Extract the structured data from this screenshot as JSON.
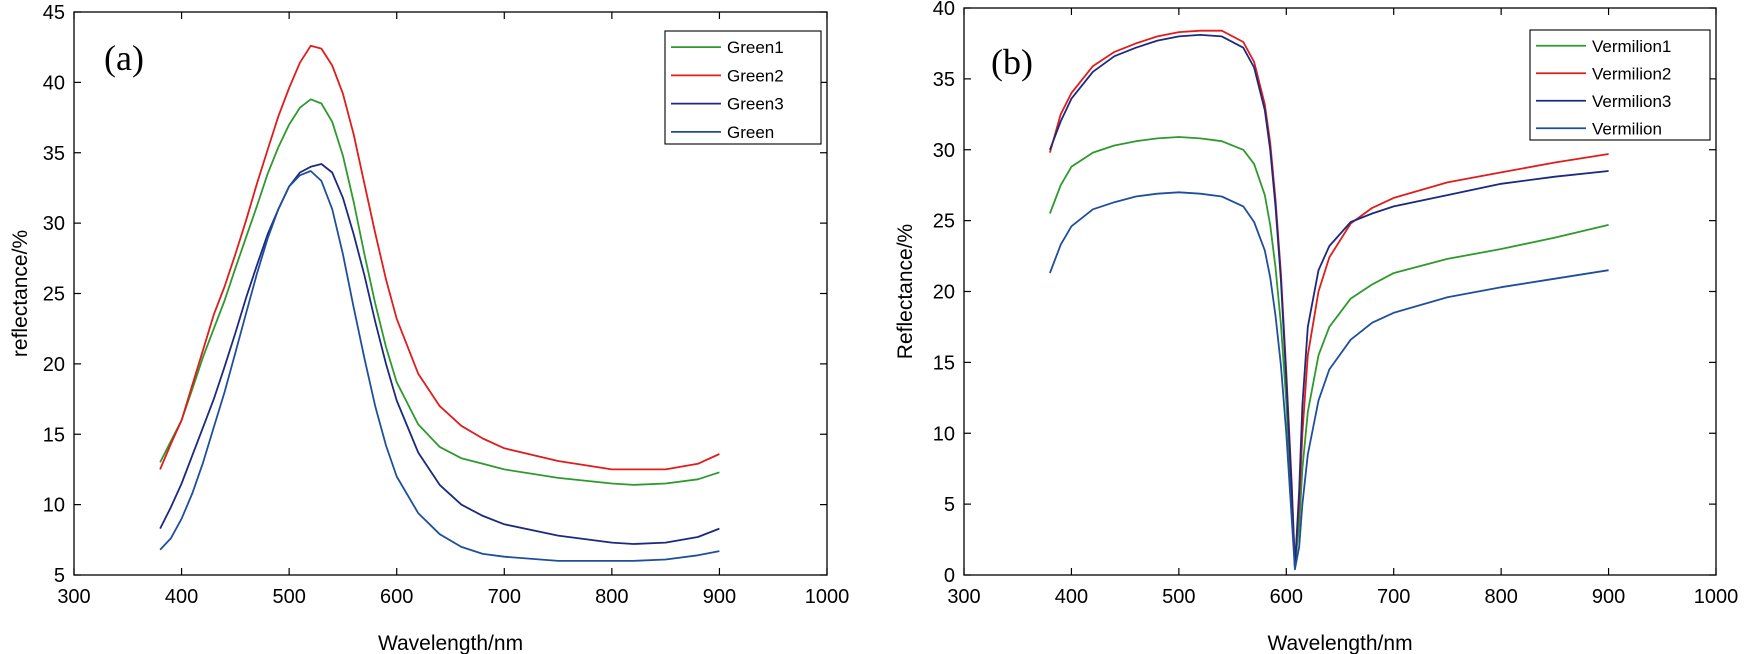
{
  "chart_data": [
    {
      "type": "line",
      "panel_label": "(a)",
      "xlabel": "Wavelength/nm",
      "ylabel": "reflectance/%",
      "xlim": [
        300,
        1000
      ],
      "ylim": [
        5,
        45
      ],
      "xticks": [
        300,
        400,
        500,
        600,
        700,
        800,
        900,
        1000
      ],
      "yticks": [
        5,
        10,
        15,
        20,
        25,
        30,
        35,
        40,
        45
      ],
      "legend_position": "top-right",
      "series": [
        {
          "name": "Green1",
          "color": "#2e9a2e",
          "x": [
            380,
            390,
            400,
            410,
            420,
            430,
            440,
            450,
            460,
            470,
            480,
            490,
            500,
            510,
            520,
            530,
            540,
            550,
            560,
            570,
            580,
            590,
            600,
            620,
            640,
            660,
            680,
            700,
            750,
            800,
            820,
            850,
            880,
            900
          ],
          "y": [
            13.0,
            14.5,
            16.0,
            18.2,
            20.5,
            22.5,
            24.5,
            26.8,
            29.0,
            31.2,
            33.5,
            35.4,
            37.0,
            38.2,
            38.8,
            38.5,
            37.2,
            34.8,
            31.5,
            27.8,
            24.3,
            21.2,
            18.7,
            15.7,
            14.1,
            13.3,
            12.9,
            12.5,
            11.9,
            11.5,
            11.4,
            11.5,
            11.8,
            12.3
          ]
        },
        {
          "name": "Green2",
          "color": "#e01c1c",
          "x": [
            380,
            390,
            400,
            410,
            420,
            430,
            440,
            450,
            460,
            470,
            480,
            490,
            500,
            510,
            520,
            530,
            540,
            550,
            560,
            570,
            580,
            590,
            600,
            620,
            640,
            660,
            680,
            700,
            750,
            800,
            820,
            850,
            880,
            900
          ],
          "y": [
            12.5,
            14.3,
            16.0,
            18.5,
            21.0,
            23.5,
            25.5,
            27.8,
            30.2,
            32.8,
            35.2,
            37.6,
            39.6,
            41.4,
            42.6,
            42.4,
            41.2,
            39.2,
            36.3,
            32.8,
            29.3,
            26.0,
            23.2,
            19.3,
            17.0,
            15.6,
            14.7,
            14.0,
            13.1,
            12.5,
            12.5,
            12.5,
            12.9,
            13.6
          ]
        },
        {
          "name": "Green3",
          "color": "#1c2a7e",
          "x": [
            380,
            390,
            400,
            410,
            420,
            430,
            440,
            450,
            460,
            470,
            480,
            490,
            500,
            510,
            520,
            530,
            540,
            550,
            560,
            570,
            580,
            590,
            600,
            620,
            640,
            660,
            680,
            700,
            750,
            800,
            820,
            850,
            880,
            900
          ],
          "y": [
            8.3,
            9.8,
            11.5,
            13.5,
            15.5,
            17.5,
            19.8,
            22.2,
            24.7,
            27.0,
            29.2,
            31.0,
            32.6,
            33.6,
            34.0,
            34.2,
            33.6,
            31.8,
            29.2,
            26.3,
            23.0,
            20.0,
            17.4,
            13.7,
            11.4,
            10.0,
            9.2,
            8.6,
            7.8,
            7.3,
            7.2,
            7.3,
            7.7,
            8.3
          ]
        },
        {
          "name": "Green",
          "color": "#1f4f9c",
          "x": [
            380,
            390,
            400,
            410,
            420,
            430,
            440,
            450,
            460,
            470,
            480,
            490,
            500,
            510,
            520,
            530,
            540,
            550,
            560,
            570,
            580,
            590,
            600,
            620,
            640,
            660,
            680,
            700,
            750,
            800,
            820,
            850,
            880,
            900
          ],
          "y": [
            6.8,
            7.6,
            9.0,
            10.8,
            13.0,
            15.5,
            18.0,
            20.8,
            23.6,
            26.4,
            28.9,
            31.0,
            32.6,
            33.4,
            33.7,
            33.0,
            31.0,
            27.8,
            24.0,
            20.4,
            17.0,
            14.2,
            12.0,
            9.4,
            7.9,
            7.0,
            6.5,
            6.3,
            6.0,
            6.0,
            6.0,
            6.1,
            6.4,
            6.7
          ]
        }
      ]
    },
    {
      "type": "line",
      "panel_label": "(b)",
      "xlabel": "Wavelength/nm",
      "ylabel": "Reflectance/%",
      "xlim": [
        300,
        1000
      ],
      "ylim": [
        0,
        40
      ],
      "xticks": [
        300,
        400,
        500,
        600,
        700,
        800,
        900,
        1000
      ],
      "yticks": [
        0,
        5,
        10,
        15,
        20,
        25,
        30,
        35,
        40
      ],
      "legend_position": "top-right",
      "series": [
        {
          "name": "Vermilion1",
          "color": "#2e9a2e",
          "x": [
            380,
            390,
            400,
            420,
            440,
            460,
            480,
            500,
            520,
            540,
            560,
            570,
            580,
            585,
            590,
            595,
            600,
            605,
            608,
            612,
            615,
            620,
            630,
            640,
            660,
            680,
            700,
            750,
            800,
            850,
            900
          ],
          "y": [
            25.5,
            27.5,
            28.8,
            29.8,
            30.3,
            30.6,
            30.8,
            30.9,
            30.8,
            30.6,
            30.0,
            29.0,
            26.8,
            24.7,
            21.7,
            17.7,
            12.2,
            5.0,
            0.7,
            3.5,
            7.5,
            11.5,
            15.5,
            17.5,
            19.5,
            20.5,
            21.3,
            22.3,
            23.0,
            23.8,
            24.7
          ]
        },
        {
          "name": "Vermilion2",
          "color": "#e01c1c",
          "x": [
            380,
            390,
            400,
            420,
            440,
            460,
            480,
            500,
            520,
            540,
            560,
            570,
            580,
            585,
            590,
            595,
            600,
            605,
            608,
            612,
            615,
            620,
            630,
            640,
            660,
            680,
            700,
            750,
            800,
            850,
            900
          ],
          "y": [
            29.8,
            32.5,
            34.0,
            35.9,
            36.9,
            37.5,
            38.0,
            38.3,
            38.4,
            38.4,
            37.6,
            36.2,
            33.2,
            30.5,
            26.5,
            21.3,
            14.3,
            6.5,
            0.8,
            5.0,
            10.0,
            15.5,
            20.0,
            22.4,
            24.8,
            25.9,
            26.6,
            27.7,
            28.4,
            29.1,
            29.7
          ]
        },
        {
          "name": "Vermilion3",
          "color": "#1c2a7e",
          "x": [
            380,
            390,
            400,
            420,
            440,
            460,
            480,
            500,
            520,
            540,
            560,
            570,
            580,
            585,
            590,
            595,
            600,
            605,
            608,
            612,
            615,
            620,
            630,
            640,
            660,
            680,
            700,
            750,
            800,
            850,
            900
          ],
          "y": [
            30.0,
            32.0,
            33.6,
            35.5,
            36.6,
            37.2,
            37.7,
            38.0,
            38.1,
            38.0,
            37.2,
            35.8,
            32.8,
            30.0,
            26.0,
            20.8,
            13.8,
            6.0,
            0.5,
            6.0,
            12.0,
            17.5,
            21.5,
            23.2,
            24.9,
            25.5,
            26.0,
            26.8,
            27.6,
            28.1,
            28.5
          ]
        },
        {
          "name": "Vermilion",
          "color": "#1f4f9c",
          "x": [
            380,
            390,
            400,
            420,
            440,
            460,
            480,
            500,
            520,
            540,
            560,
            570,
            580,
            585,
            590,
            595,
            600,
            605,
            608,
            612,
            615,
            620,
            630,
            640,
            660,
            680,
            700,
            750,
            800,
            850,
            900
          ],
          "y": [
            21.3,
            23.3,
            24.6,
            25.8,
            26.3,
            26.7,
            26.9,
            27.0,
            26.9,
            26.7,
            26.0,
            24.9,
            22.9,
            21.0,
            18.3,
            14.8,
            10.0,
            4.0,
            0.4,
            2.0,
            5.0,
            8.5,
            12.3,
            14.5,
            16.6,
            17.8,
            18.5,
            19.6,
            20.3,
            20.9,
            21.5
          ]
        }
      ]
    }
  ]
}
